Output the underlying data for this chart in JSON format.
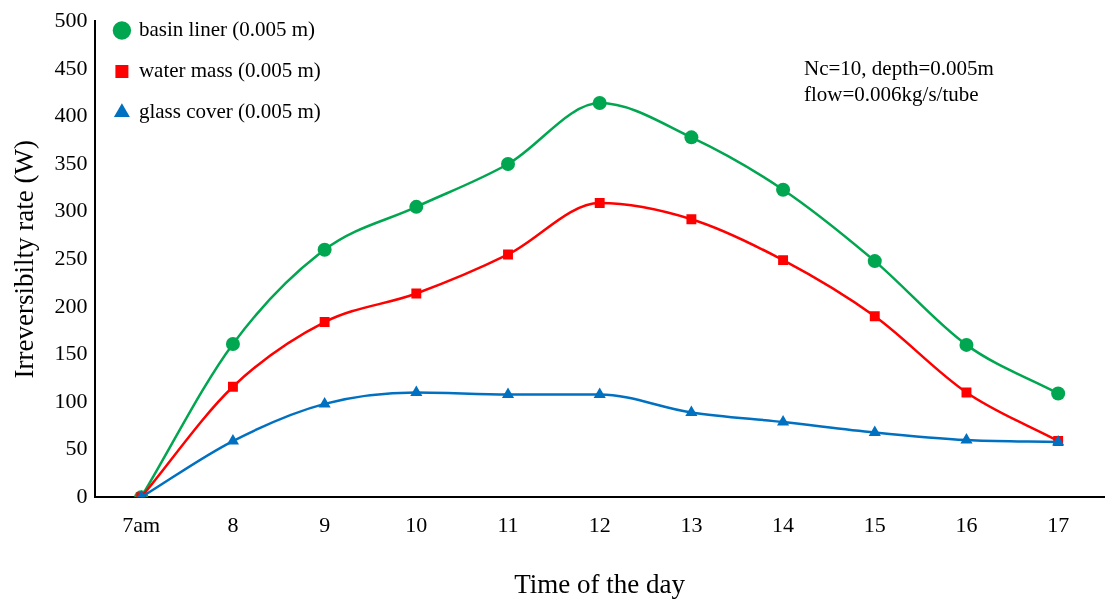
{
  "chart_data": {
    "type": "line",
    "xlabel": "Time of the day",
    "ylabel": "Irreversibilty rate (W)",
    "categories": [
      "7am",
      "8",
      "9",
      "10",
      "11",
      "12",
      "13",
      "14",
      "15",
      "16",
      "17"
    ],
    "series": [
      {
        "name": "basin liner (0.005 m)",
        "color": "#00a650",
        "marker": "circle",
        "values": [
          0,
          161,
          260,
          305,
          350,
          414,
          378,
          323,
          248,
          160,
          109
        ]
      },
      {
        "name": "water mass (0.005 m)",
        "color": "#ff0000",
        "marker": "square",
        "values": [
          0,
          116,
          184,
          214,
          255,
          309,
          292,
          249,
          190,
          110,
          59
        ]
      },
      {
        "name": "glass cover (0.005 m)",
        "color": "#0070c0",
        "marker": "triangle",
        "values": [
          0,
          59,
          98,
          110,
          108,
          108,
          89,
          79,
          68,
          60,
          58
        ]
      }
    ],
    "ylim": [
      0,
      500
    ],
    "yticks": [
      0,
      50,
      100,
      150,
      200,
      250,
      300,
      350,
      400,
      450,
      500
    ],
    "grid": false,
    "legend": "top left",
    "line_style": "solid",
    "annotations": [
      "Nc=10, depth=0.005m",
      "flow=0.006kg/s/tube"
    ]
  }
}
